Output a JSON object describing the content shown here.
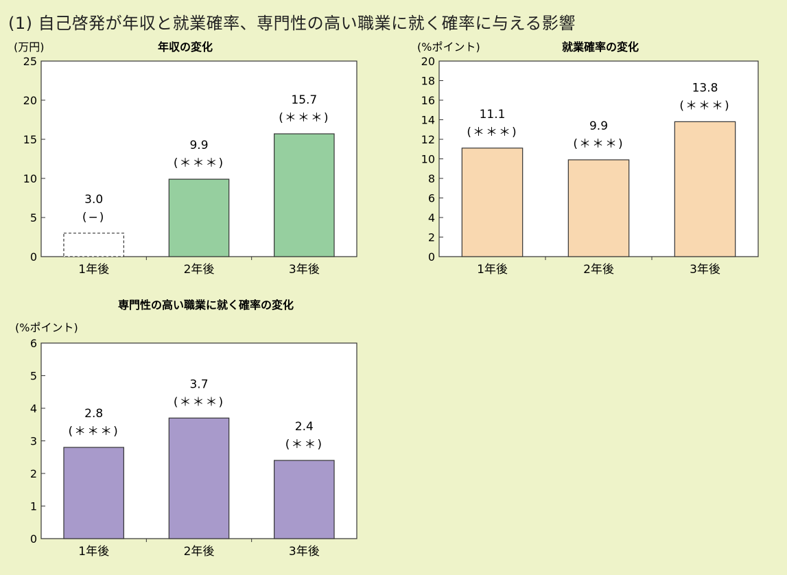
{
  "page_title": "(1) 自己啓発が年収と就業確率、専門性の高い職業に就く確率に与える影響",
  "colors": {
    "background": "#eef3c9",
    "plot_background": "#ffffff",
    "axis": "#333333"
  },
  "chart_data": [
    {
      "type": "bar",
      "title": "年収の変化",
      "unit_label": "(万円)",
      "categories": [
        "1年後",
        "2年後",
        "3年後"
      ],
      "values": [
        3.0,
        9.9,
        15.7
      ],
      "value_labels": [
        "3.0",
        "9.9",
        "15.7"
      ],
      "significance": [
        "(−)",
        "(＊＊＊)",
        "(＊＊＊)"
      ],
      "bar_styles": [
        "dashed",
        "solid",
        "solid"
      ],
      "color": "#96cf9f",
      "ylim": [
        0,
        25
      ],
      "yticks": [
        0,
        5,
        10,
        15,
        20,
        25
      ],
      "grid": false
    },
    {
      "type": "bar",
      "title": "就業確率の変化",
      "unit_label": "(%ポイント)",
      "categories": [
        "1年後",
        "2年後",
        "3年後"
      ],
      "values": [
        11.1,
        9.9,
        13.8
      ],
      "value_labels": [
        "11.1",
        "9.9",
        "13.8"
      ],
      "significance": [
        "(＊＊＊)",
        "(＊＊＊)",
        "(＊＊＊)"
      ],
      "bar_styles": [
        "solid",
        "solid",
        "solid"
      ],
      "color": "#f9d8b0",
      "ylim": [
        0,
        20
      ],
      "yticks": [
        0,
        2,
        4,
        6,
        8,
        10,
        12,
        14,
        16,
        18,
        20
      ],
      "grid": false
    },
    {
      "type": "bar",
      "title": "専門性の高い職業に就く確率の変化",
      "unit_label": "(%ポイント)",
      "categories": [
        "1年後",
        "2年後",
        "3年後"
      ],
      "values": [
        2.8,
        3.7,
        2.4
      ],
      "value_labels": [
        "2.8",
        "3.7",
        "2.4"
      ],
      "significance": [
        "(＊＊＊)",
        "(＊＊＊)",
        "(＊＊)"
      ],
      "bar_styles": [
        "solid",
        "solid",
        "solid"
      ],
      "color": "#a89acb",
      "ylim": [
        0,
        6
      ],
      "yticks": [
        0,
        1,
        2,
        3,
        4,
        5,
        6
      ],
      "grid": false
    }
  ]
}
